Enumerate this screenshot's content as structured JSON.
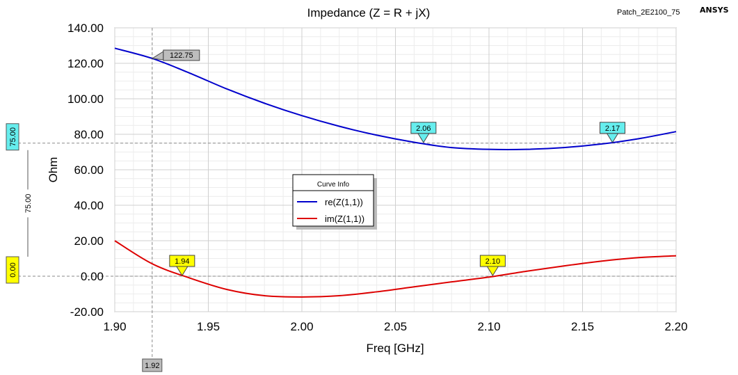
{
  "window": {
    "project_name": "Patch_2E2100_75",
    "brand": "ANSYS"
  },
  "chart_data": {
    "type": "line",
    "title": "Impedance (Z = R + jX)",
    "xlabel": "Freq [GHz]",
    "ylabel": "Ohm",
    "xlim": [
      1.9,
      2.2
    ],
    "ylim": [
      -20,
      140
    ],
    "xticks": [
      1.9,
      1.95,
      2.0,
      2.05,
      2.1,
      2.15,
      2.2
    ],
    "xtick_labels": [
      "1.90",
      "1.95",
      "2.00",
      "2.05",
      "2.10",
      "2.15",
      "2.20"
    ],
    "yticks": [
      -20,
      0,
      20,
      40,
      60,
      80,
      100,
      120,
      140
    ],
    "ytick_labels": [
      "-20.00",
      "0.00",
      "20.00",
      "40.00",
      "60.00",
      "80.00",
      "100.00",
      "120.00",
      "140.00"
    ],
    "grid": true,
    "legend": {
      "title": "Curve Info",
      "placement": "center"
    },
    "series": [
      {
        "name": "re(Z(1,1))",
        "color": "#0000CC",
        "x": [
          1.9,
          1.92,
          1.94,
          1.96,
          1.98,
          2.0,
          2.02,
          2.04,
          2.06,
          2.08,
          2.1,
          2.12,
          2.14,
          2.16,
          2.18,
          2.2
        ],
        "y": [
          128.5,
          122.75,
          114.5,
          105.5,
          97.5,
          90.5,
          84.5,
          79.5,
          75.5,
          72.5,
          71.5,
          71.5,
          72.5,
          74.5,
          77.5,
          81.5
        ]
      },
      {
        "name": "im(Z(1,1))",
        "color": "#DD0000",
        "x": [
          1.9,
          1.92,
          1.94,
          1.96,
          1.98,
          2.0,
          2.02,
          2.04,
          2.06,
          2.08,
          2.1,
          2.12,
          2.14,
          2.16,
          2.18,
          2.2
        ],
        "y": [
          20.0,
          7.0,
          -1.0,
          -7.5,
          -11.0,
          -11.7,
          -11.0,
          -8.8,
          -6.0,
          -3.2,
          -0.5,
          2.8,
          5.8,
          8.5,
          10.5,
          11.5
        ]
      }
    ],
    "markers": [
      {
        "label": "122.75",
        "x": 1.92,
        "y": 122.75,
        "style": "gray-callout"
      },
      {
        "label": "2.06",
        "x": 2.065,
        "y": 75,
        "style": "cyan-down"
      },
      {
        "label": "2.17",
        "x": 2.166,
        "y": 75,
        "style": "cyan-down"
      },
      {
        "label": "1.94",
        "x": 1.936,
        "y": 0,
        "style": "yellow-down"
      },
      {
        "label": "2.10",
        "x": 2.102,
        "y": 0,
        "style": "yellow-down"
      }
    ],
    "reference_lines": [
      {
        "orientation": "horizontal",
        "value": 75,
        "label": "75.00",
        "color": "#66EEEE"
      },
      {
        "orientation": "horizontal",
        "value": 0,
        "label": "0.00",
        "color": "#FFFF00"
      },
      {
        "orientation": "vertical",
        "value": 1.92,
        "label": "1.92",
        "color": "#BBBBBB"
      }
    ],
    "delta_annotation": {
      "label": "75.00"
    }
  }
}
